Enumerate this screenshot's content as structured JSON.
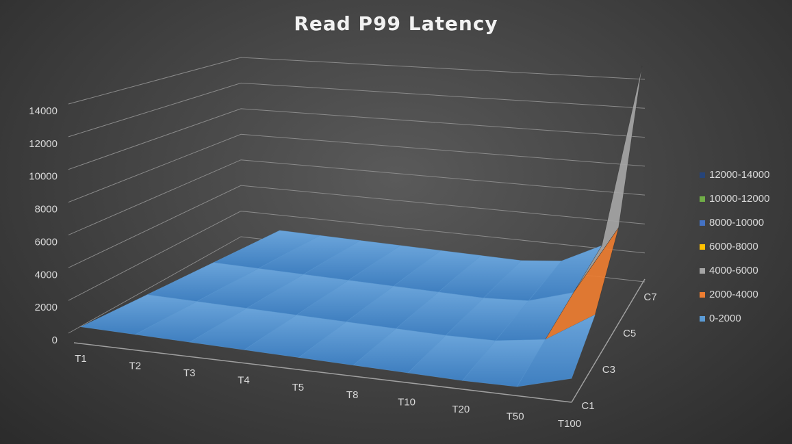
{
  "chart_data": {
    "type": "surface",
    "title": "Read P99 Latency",
    "x_categories": [
      "T1",
      "T2",
      "T3",
      "T4",
      "T5",
      "T8",
      "T10",
      "T20",
      "T50",
      "T100"
    ],
    "depth_categories": [
      "C1",
      "C3",
      "C5",
      "C7"
    ],
    "z_ticks": [
      "0",
      "2000",
      "4000",
      "6000",
      "8000",
      "10000",
      "12000",
      "14000"
    ],
    "zlim": [
      0,
      14000
    ],
    "grid": true,
    "legend_position": "right",
    "bands": [
      {
        "name": "12000-14000",
        "color": "#264478"
      },
      {
        "name": "10000-12000",
        "color": "#70ad47"
      },
      {
        "name": "8000-10000",
        "color": "#4472c4"
      },
      {
        "name": "6000-8000",
        "color": "#ffc000"
      },
      {
        "name": "4000-6000",
        "color": "#a5a5a5"
      },
      {
        "name": "2000-4000",
        "color": "#ed7d31"
      },
      {
        "name": "0-2000",
        "color": "#5b9bd5"
      }
    ],
    "values": [
      [
        400,
        400,
        400,
        400
      ],
      [
        400,
        400,
        400,
        400
      ],
      [
        400,
        400,
        400,
        400
      ],
      [
        400,
        400,
        400,
        400
      ],
      [
        400,
        400,
        400,
        400
      ],
      [
        400,
        400,
        400,
        400
      ],
      [
        400,
        400,
        400,
        400
      ],
      [
        400,
        500,
        600,
        700
      ],
      [
        500,
        1000,
        1500,
        2000
      ],
      [
        1500,
        3000,
        6000,
        13800
      ]
    ]
  }
}
